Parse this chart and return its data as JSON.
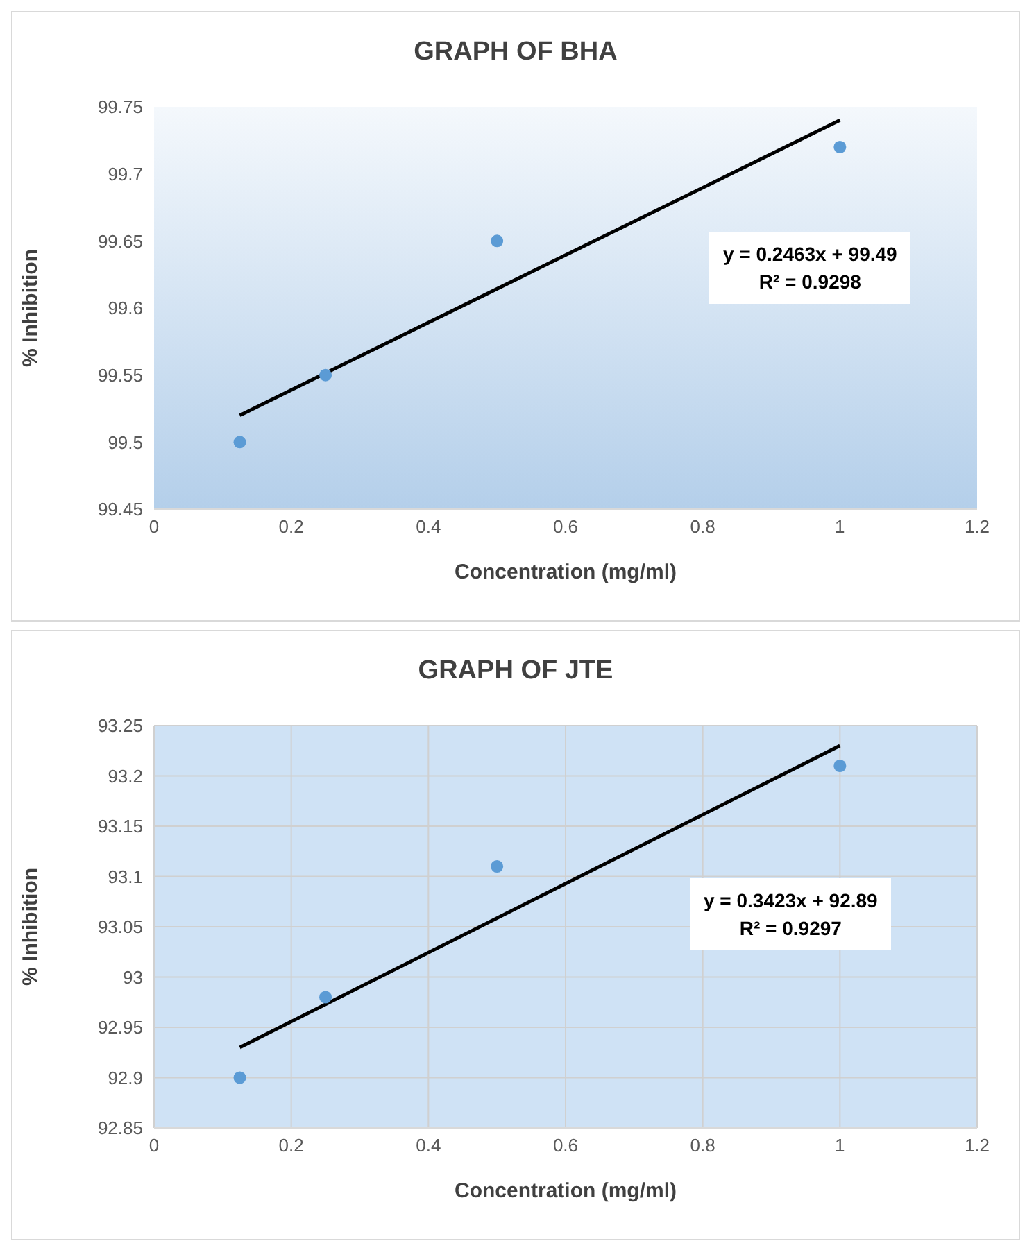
{
  "chart_data": [
    {
      "type": "scatter",
      "title": "GRAPH OF BHA",
      "xlabel": "Concentration (mg/ml)",
      "ylabel": "% Inhibition",
      "xlim": [
        0,
        1.2
      ],
      "xticks": [
        0,
        0.2,
        0.4,
        0.6,
        0.8,
        1,
        1.2
      ],
      "ylim": [
        99.45,
        99.75
      ],
      "yticks": [
        99.45,
        99.5,
        99.55,
        99.6,
        99.65,
        99.7,
        99.75
      ],
      "grid": false,
      "annotations": [
        "y = 0.2463x + 99.49",
        "R² = 0.9298"
      ],
      "series": [
        {
          "marker": "circle",
          "color": "#5b9bd5",
          "x": [
            0.125,
            0.25,
            0.5,
            1
          ],
          "values": [
            99.5,
            99.55,
            99.65,
            99.72
          ]
        },
        {
          "type": "line",
          "marker": "none",
          "color": "#000000",
          "x": [
            0.125,
            1
          ],
          "values": [
            99.52,
            99.74
          ]
        }
      ]
    },
    {
      "type": "scatter",
      "title": "GRAPH OF JTE",
      "xlabel": "Concentration (mg/ml)",
      "ylabel": "% Inhibition",
      "xlim": [
        0,
        1.2
      ],
      "xticks": [
        0,
        0.2,
        0.4,
        0.6,
        0.8,
        1,
        1.2
      ],
      "ylim": [
        92.85,
        93.25
      ],
      "yticks": [
        92.85,
        92.9,
        92.95,
        93,
        93.05,
        93.1,
        93.15,
        93.2,
        93.25
      ],
      "grid": true,
      "annotations": [
        "y = 0.3423x + 92.89",
        "R² = 0.9297"
      ],
      "series": [
        {
          "marker": "circle",
          "color": "#5b9bd5",
          "x": [
            0.125,
            0.25,
            0.5,
            1
          ],
          "values": [
            92.9,
            92.98,
            93.11,
            93.21
          ]
        },
        {
          "type": "line",
          "marker": "none",
          "color": "#000000",
          "x": [
            0.125,
            1
          ],
          "values": [
            92.93,
            93.23
          ]
        }
      ]
    }
  ]
}
